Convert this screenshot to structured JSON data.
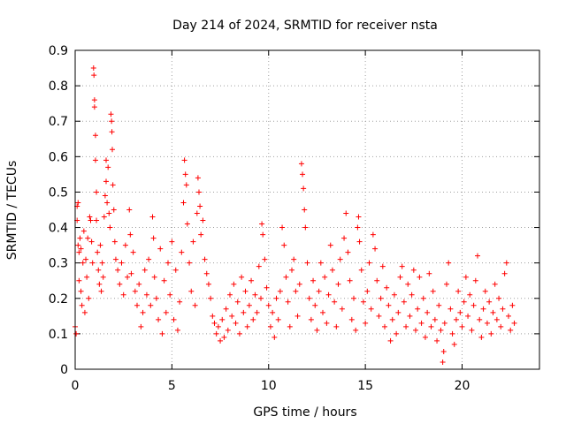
{
  "chart_data": {
    "type": "scatter",
    "title": "Day 214 of 2024, SRMTID for receiver nsta",
    "xlabel": "GPS time / hours",
    "ylabel": "SRMTID / TECUs",
    "xlim": [
      0,
      24
    ],
    "ylim": [
      0,
      0.9
    ],
    "grid": true,
    "marker": "+",
    "color": "#ff0000",
    "xticks": [
      "0",
      "5",
      "10",
      "15",
      "20"
    ],
    "yticks": [
      "0",
      "0.1",
      "0.2",
      "0.3",
      "0.4",
      "0.5",
      "0.6",
      "0.7",
      "0.8",
      "0.9"
    ],
    "series": [
      {
        "name": "SRMTID",
        "points": [
          [
            0.0,
            0.12
          ],
          [
            0.05,
            0.1
          ],
          [
            0.1,
            0.46
          ],
          [
            0.1,
            0.42
          ],
          [
            0.15,
            0.47
          ],
          [
            0.15,
            0.35
          ],
          [
            0.2,
            0.33
          ],
          [
            0.2,
            0.25
          ],
          [
            0.25,
            0.37
          ],
          [
            0.3,
            0.34
          ],
          [
            0.3,
            0.22
          ],
          [
            0.35,
            0.18
          ],
          [
            0.4,
            0.3
          ],
          [
            0.45,
            0.39
          ],
          [
            0.5,
            0.16
          ],
          [
            0.55,
            0.31
          ],
          [
            0.6,
            0.26
          ],
          [
            0.65,
            0.37
          ],
          [
            0.7,
            0.2
          ],
          [
            0.75,
            0.43
          ],
          [
            0.8,
            0.42
          ],
          [
            0.85,
            0.36
          ],
          [
            0.9,
            0.3
          ],
          [
            0.95,
            0.85
          ],
          [
            0.97,
            0.83
          ],
          [
            1.0,
            0.76
          ],
          [
            1.0,
            0.74
          ],
          [
            1.05,
            0.66
          ],
          [
            1.05,
            0.59
          ],
          [
            1.1,
            0.5
          ],
          [
            1.1,
            0.42
          ],
          [
            1.15,
            0.33
          ],
          [
            1.2,
            0.28
          ],
          [
            1.25,
            0.24
          ],
          [
            1.3,
            0.35
          ],
          [
            1.35,
            0.22
          ],
          [
            1.4,
            0.3
          ],
          [
            1.45,
            0.26
          ],
          [
            1.5,
            0.43
          ],
          [
            1.55,
            0.49
          ],
          [
            1.6,
            0.53
          ],
          [
            1.6,
            0.59
          ],
          [
            1.65,
            0.47
          ],
          [
            1.7,
            0.57
          ],
          [
            1.75,
            0.44
          ],
          [
            1.8,
            0.4
          ],
          [
            1.85,
            0.72
          ],
          [
            1.88,
            0.7
          ],
          [
            1.9,
            0.67
          ],
          [
            1.92,
            0.62
          ],
          [
            1.95,
            0.52
          ],
          [
            2.0,
            0.45
          ],
          [
            2.05,
            0.36
          ],
          [
            2.1,
            0.31
          ],
          [
            2.2,
            0.28
          ],
          [
            2.3,
            0.24
          ],
          [
            2.4,
            0.3
          ],
          [
            2.5,
            0.21
          ],
          [
            2.6,
            0.35
          ],
          [
            2.7,
            0.26
          ],
          [
            2.8,
            0.45
          ],
          [
            2.85,
            0.38
          ],
          [
            2.9,
            0.27
          ],
          [
            3.0,
            0.33
          ],
          [
            3.1,
            0.22
          ],
          [
            3.2,
            0.18
          ],
          [
            3.3,
            0.24
          ],
          [
            3.4,
            0.12
          ],
          [
            3.5,
            0.16
          ],
          [
            3.6,
            0.28
          ],
          [
            3.7,
            0.21
          ],
          [
            3.8,
            0.31
          ],
          [
            3.9,
            0.18
          ],
          [
            4.0,
            0.43
          ],
          [
            4.05,
            0.37
          ],
          [
            4.1,
            0.26
          ],
          [
            4.2,
            0.2
          ],
          [
            4.3,
            0.14
          ],
          [
            4.4,
            0.34
          ],
          [
            4.5,
            0.1
          ],
          [
            4.6,
            0.25
          ],
          [
            4.7,
            0.16
          ],
          [
            4.8,
            0.3
          ],
          [
            4.9,
            0.21
          ],
          [
            5.0,
            0.36
          ],
          [
            5.1,
            0.14
          ],
          [
            5.2,
            0.28
          ],
          [
            5.3,
            0.11
          ],
          [
            5.4,
            0.19
          ],
          [
            5.5,
            0.33
          ],
          [
            5.6,
            0.47
          ],
          [
            5.65,
            0.59
          ],
          [
            5.7,
            0.55
          ],
          [
            5.75,
            0.52
          ],
          [
            5.8,
            0.41
          ],
          [
            5.9,
            0.3
          ],
          [
            6.0,
            0.22
          ],
          [
            6.1,
            0.36
          ],
          [
            6.2,
            0.18
          ],
          [
            6.3,
            0.44
          ],
          [
            6.35,
            0.54
          ],
          [
            6.4,
            0.5
          ],
          [
            6.45,
            0.46
          ],
          [
            6.5,
            0.38
          ],
          [
            6.6,
            0.42
          ],
          [
            6.7,
            0.31
          ],
          [
            6.8,
            0.27
          ],
          [
            6.9,
            0.24
          ],
          [
            7.0,
            0.2
          ],
          [
            7.1,
            0.15
          ],
          [
            7.2,
            0.13
          ],
          [
            7.3,
            0.1
          ],
          [
            7.4,
            0.12
          ],
          [
            7.5,
            0.08
          ],
          [
            7.6,
            0.14
          ],
          [
            7.7,
            0.09
          ],
          [
            7.8,
            0.17
          ],
          [
            7.9,
            0.11
          ],
          [
            8.0,
            0.21
          ],
          [
            8.1,
            0.15
          ],
          [
            8.2,
            0.24
          ],
          [
            8.3,
            0.13
          ],
          [
            8.4,
            0.19
          ],
          [
            8.5,
            0.1
          ],
          [
            8.6,
            0.26
          ],
          [
            8.7,
            0.16
          ],
          [
            8.8,
            0.22
          ],
          [
            8.9,
            0.12
          ],
          [
            9.0,
            0.18
          ],
          [
            9.1,
            0.25
          ],
          [
            9.2,
            0.14
          ],
          [
            9.3,
            0.21
          ],
          [
            9.4,
            0.16
          ],
          [
            9.5,
            0.29
          ],
          [
            9.6,
            0.2
          ],
          [
            9.65,
            0.41
          ],
          [
            9.7,
            0.38
          ],
          [
            9.8,
            0.31
          ],
          [
            9.9,
            0.23
          ],
          [
            10.0,
            0.18
          ],
          [
            10.1,
            0.12
          ],
          [
            10.2,
            0.16
          ],
          [
            10.3,
            0.09
          ],
          [
            10.4,
            0.2
          ],
          [
            10.5,
            0.14
          ],
          [
            10.6,
            0.22
          ],
          [
            10.7,
            0.4
          ],
          [
            10.8,
            0.35
          ],
          [
            10.9,
            0.26
          ],
          [
            11.0,
            0.19
          ],
          [
            11.1,
            0.12
          ],
          [
            11.2,
            0.28
          ],
          [
            11.3,
            0.31
          ],
          [
            11.4,
            0.22
          ],
          [
            11.5,
            0.15
          ],
          [
            11.6,
            0.24
          ],
          [
            11.7,
            0.58
          ],
          [
            11.75,
            0.55
          ],
          [
            11.8,
            0.51
          ],
          [
            11.85,
            0.45
          ],
          [
            11.9,
            0.4
          ],
          [
            12.0,
            0.3
          ],
          [
            12.1,
            0.2
          ],
          [
            12.2,
            0.14
          ],
          [
            12.3,
            0.25
          ],
          [
            12.4,
            0.18
          ],
          [
            12.5,
            0.11
          ],
          [
            12.6,
            0.22
          ],
          [
            12.7,
            0.3
          ],
          [
            12.8,
            0.16
          ],
          [
            12.9,
            0.26
          ],
          [
            13.0,
            0.13
          ],
          [
            13.1,
            0.21
          ],
          [
            13.2,
            0.35
          ],
          [
            13.3,
            0.28
          ],
          [
            13.4,
            0.19
          ],
          [
            13.5,
            0.12
          ],
          [
            13.6,
            0.24
          ],
          [
            13.7,
            0.31
          ],
          [
            13.8,
            0.17
          ],
          [
            13.9,
            0.37
          ],
          [
            14.0,
            0.44
          ],
          [
            14.1,
            0.33
          ],
          [
            14.2,
            0.25
          ],
          [
            14.3,
            0.14
          ],
          [
            14.4,
            0.2
          ],
          [
            14.5,
            0.11
          ],
          [
            14.6,
            0.4
          ],
          [
            14.65,
            0.43
          ],
          [
            14.7,
            0.36
          ],
          [
            14.8,
            0.28
          ],
          [
            14.9,
            0.19
          ],
          [
            15.0,
            0.13
          ],
          [
            15.1,
            0.22
          ],
          [
            15.2,
            0.3
          ],
          [
            15.3,
            0.17
          ],
          [
            15.4,
            0.38
          ],
          [
            15.5,
            0.34
          ],
          [
            15.6,
            0.25
          ],
          [
            15.7,
            0.15
          ],
          [
            15.8,
            0.2
          ],
          [
            15.9,
            0.29
          ],
          [
            16.0,
            0.12
          ],
          [
            16.1,
            0.23
          ],
          [
            16.2,
            0.18
          ],
          [
            16.3,
            0.08
          ],
          [
            16.4,
            0.14
          ],
          [
            16.5,
            0.21
          ],
          [
            16.6,
            0.1
          ],
          [
            16.7,
            0.16
          ],
          [
            16.8,
            0.26
          ],
          [
            16.9,
            0.29
          ],
          [
            17.0,
            0.19
          ],
          [
            17.1,
            0.12
          ],
          [
            17.2,
            0.24
          ],
          [
            17.3,
            0.15
          ],
          [
            17.4,
            0.21
          ],
          [
            17.5,
            0.28
          ],
          [
            17.6,
            0.11
          ],
          [
            17.7,
            0.17
          ],
          [
            17.8,
            0.26
          ],
          [
            17.9,
            0.13
          ],
          [
            18.0,
            0.2
          ],
          [
            18.1,
            0.09
          ],
          [
            18.2,
            0.16
          ],
          [
            18.3,
            0.27
          ],
          [
            18.4,
            0.12
          ],
          [
            18.5,
            0.22
          ],
          [
            18.6,
            0.14
          ],
          [
            18.7,
            0.08
          ],
          [
            18.8,
            0.18
          ],
          [
            18.9,
            0.11
          ],
          [
            19.0,
            0.02
          ],
          [
            19.05,
            0.05
          ],
          [
            19.1,
            0.13
          ],
          [
            19.2,
            0.24
          ],
          [
            19.3,
            0.3
          ],
          [
            19.4,
            0.17
          ],
          [
            19.5,
            0.1
          ],
          [
            19.6,
            0.07
          ],
          [
            19.7,
            0.14
          ],
          [
            19.8,
            0.22
          ],
          [
            19.9,
            0.16
          ],
          [
            20.0,
            0.12
          ],
          [
            20.1,
            0.19
          ],
          [
            20.2,
            0.26
          ],
          [
            20.3,
            0.15
          ],
          [
            20.4,
            0.21
          ],
          [
            20.5,
            0.11
          ],
          [
            20.6,
            0.18
          ],
          [
            20.7,
            0.25
          ],
          [
            20.8,
            0.32
          ],
          [
            20.9,
            0.14
          ],
          [
            21.0,
            0.09
          ],
          [
            21.1,
            0.17
          ],
          [
            21.2,
            0.22
          ],
          [
            21.3,
            0.13
          ],
          [
            21.4,
            0.19
          ],
          [
            21.5,
            0.1
          ],
          [
            21.6,
            0.16
          ],
          [
            21.7,
            0.24
          ],
          [
            21.8,
            0.14
          ],
          [
            21.9,
            0.2
          ],
          [
            22.0,
            0.12
          ],
          [
            22.1,
            0.17
          ],
          [
            22.2,
            0.27
          ],
          [
            22.3,
            0.3
          ],
          [
            22.4,
            0.15
          ],
          [
            22.5,
            0.11
          ],
          [
            22.6,
            0.18
          ],
          [
            22.7,
            0.13
          ]
        ]
      }
    ]
  }
}
